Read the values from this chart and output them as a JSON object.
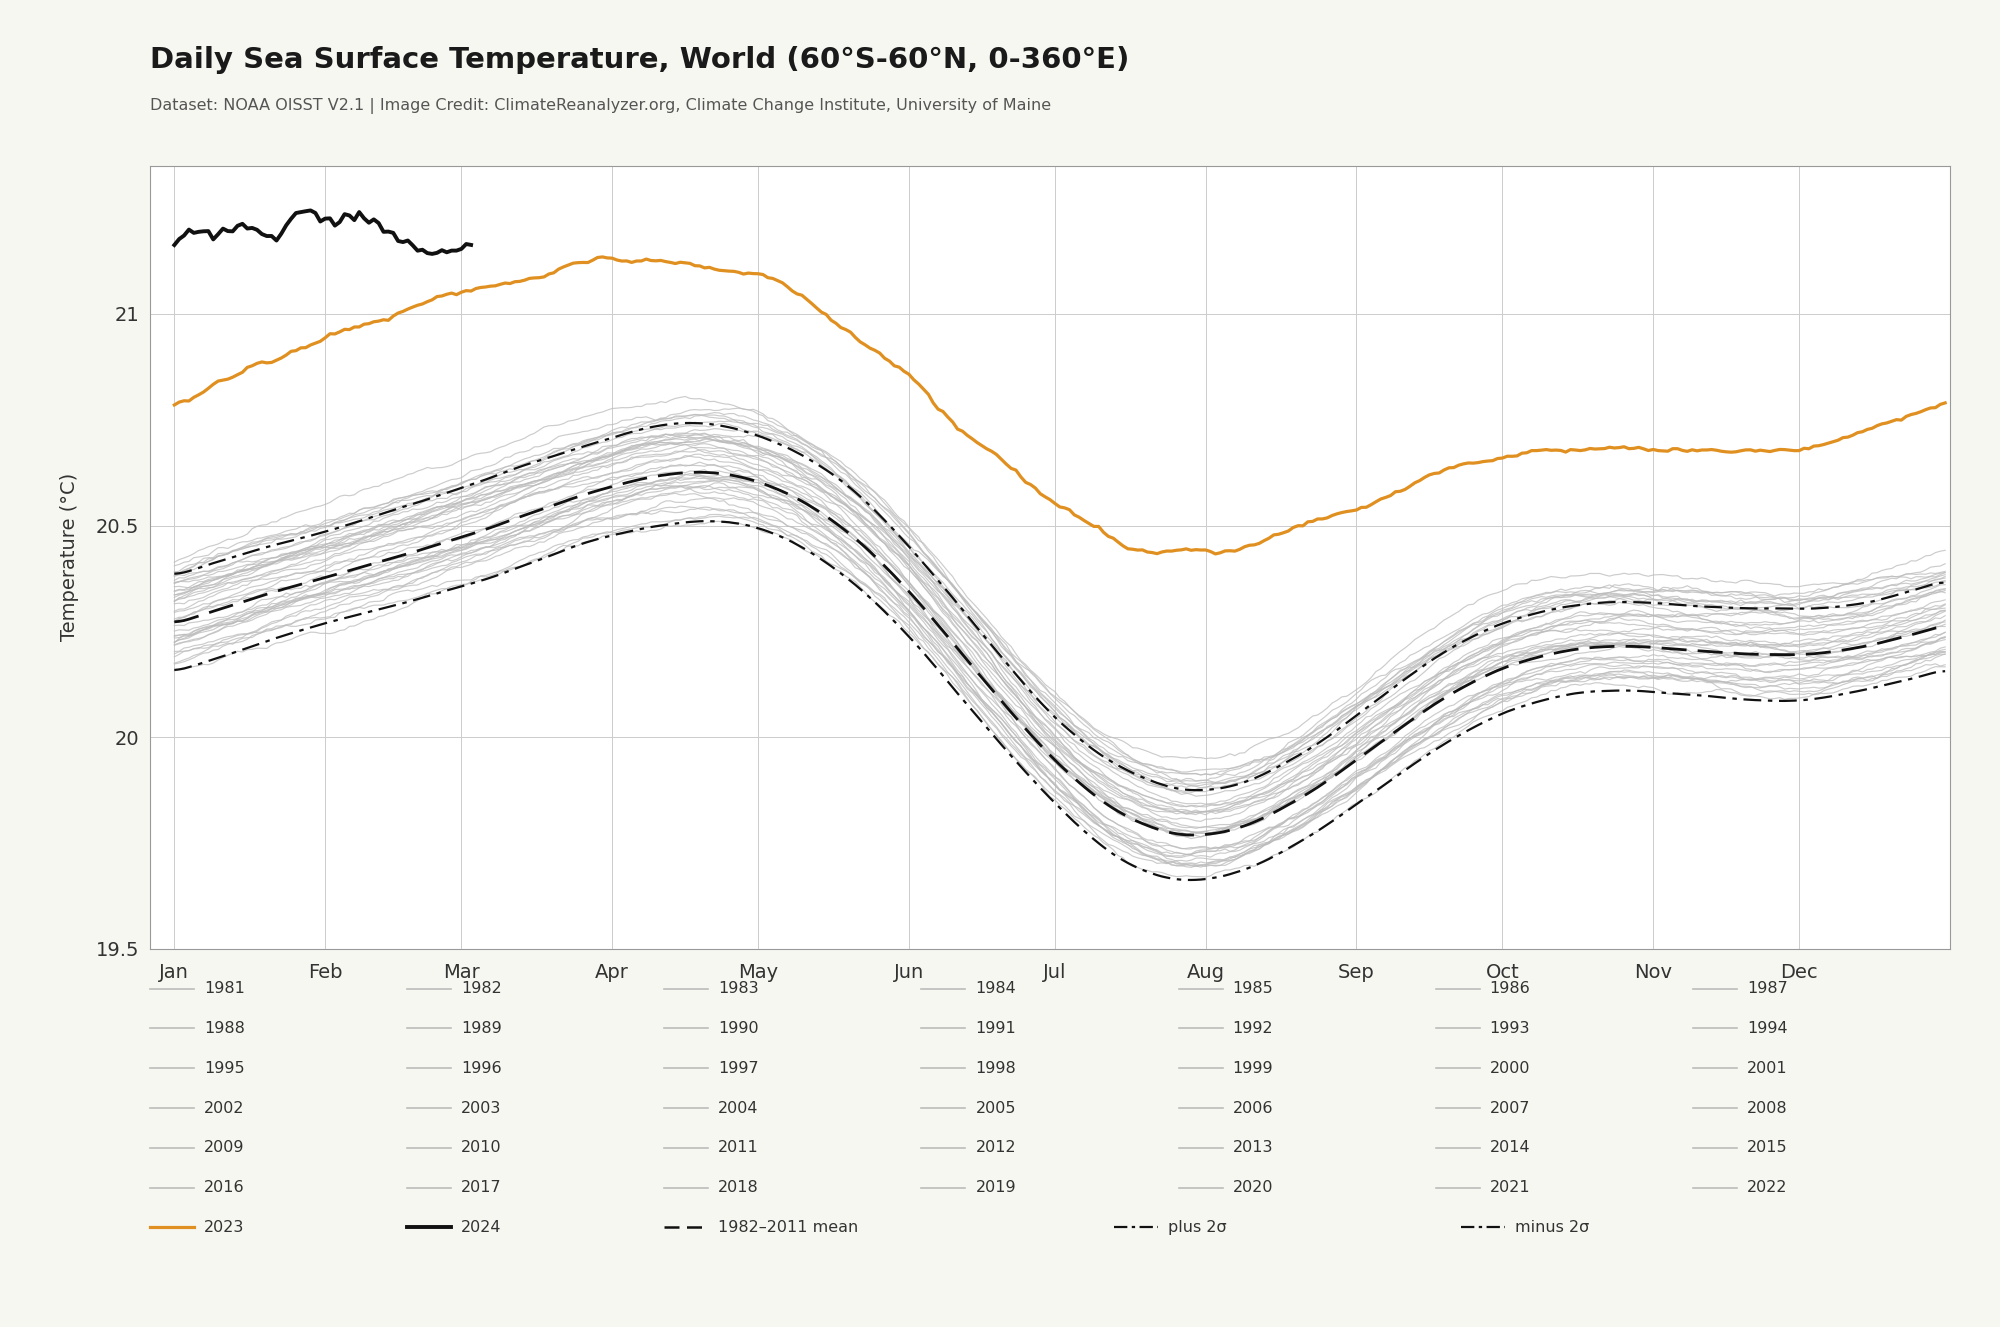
{
  "title": "Daily Sea Surface Temperature, World (60°S-60°N, 0-360°E)",
  "subtitle": "Dataset: NOAA OISST V2.1 | Image Credit: ClimateReanalyzer.org, Climate Change Institute, University of Maine",
  "ylabel": "Temperature (°C)",
  "ylim": [
    19.5,
    21.35
  ],
  "yticks": [
    19.5,
    20.0,
    20.5,
    21.0
  ],
  "months": [
    "Jan",
    "Feb",
    "Mar",
    "Apr",
    "May",
    "Jun",
    "Jul",
    "Aug",
    "Sep",
    "Oct",
    "Nov",
    "Dec"
  ],
  "bg_color": "#f7f7f2",
  "plot_bg_color": "#ffffff",
  "gray_color": "#bbbbbb",
  "orange_color": "#e09020",
  "black_color": "#111111",
  "mean_color": "#111111",
  "years_gray": [
    1981,
    1982,
    1983,
    1984,
    1985,
    1986,
    1987,
    1988,
    1989,
    1990,
    1991,
    1992,
    1993,
    1994,
    1995,
    1996,
    1997,
    1998,
    1999,
    2000,
    2001,
    2002,
    2003,
    2004,
    2005,
    2006,
    2007,
    2008,
    2009,
    2010,
    2011,
    2012,
    2013,
    2014,
    2015,
    2016,
    2017,
    2018,
    2019,
    2020,
    2021,
    2022
  ],
  "legend_years": [
    [
      1981,
      1982,
      1983,
      1984,
      1985,
      1986,
      1987
    ],
    [
      1988,
      1989,
      1990,
      1991,
      1992,
      1993,
      1994
    ],
    [
      1995,
      1996,
      1997,
      1998,
      1999,
      2000,
      2001
    ],
    [
      2002,
      2003,
      2004,
      2005,
      2006,
      2007,
      2008
    ],
    [
      2009,
      2010,
      2011,
      2012,
      2013,
      2014,
      2015
    ],
    [
      2016,
      2017,
      2018,
      2019,
      2020,
      2021,
      2022
    ]
  ]
}
